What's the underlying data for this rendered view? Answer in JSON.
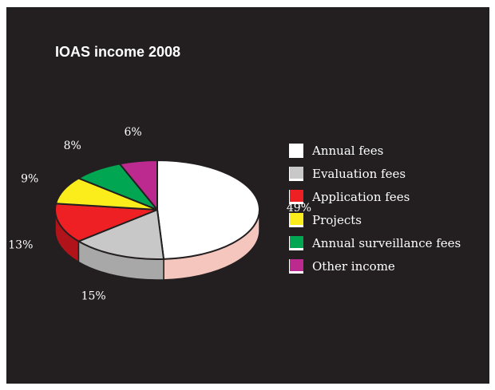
{
  "chart_data": {
    "type": "pie",
    "title": "IOAS income 2008",
    "three_d": true,
    "slices": [
      {
        "label": "Annual fees",
        "value": 49,
        "display": "49%",
        "color": "#ffffff",
        "side_color": "#f5c6bd"
      },
      {
        "label": "Evaluation fees",
        "value": 15,
        "display": "15%",
        "color": "#c8c8c8",
        "side_color": "#a8a8a8"
      },
      {
        "label": "Application fees",
        "value": 13,
        "display": "13%",
        "color": "#ee2024",
        "side_color": "#b0141a"
      },
      {
        "label": "Projects",
        "value": 9,
        "display": "9%",
        "color": "#fbec1c",
        "side_color": "#c8ba10"
      },
      {
        "label": "Annual surveillance fees",
        "value": 8,
        "display": "8%",
        "color": "#00a651",
        "side_color": "#007a3b"
      },
      {
        "label": "Other income",
        "value": 6,
        "display": "6%",
        "color": "#bd2a8f",
        "side_color": "#8a1d68"
      }
    ],
    "legend_position": "right"
  }
}
